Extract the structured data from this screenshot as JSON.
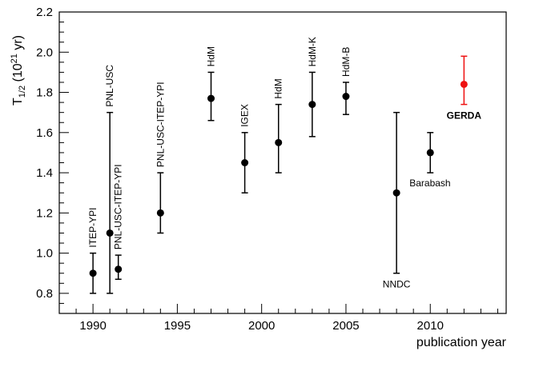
{
  "chart_data": {
    "type": "scatter",
    "title": "",
    "xlabel": "publication year",
    "ylabel_main": "T",
    "ylabel_sub": "1/2",
    "ylabel_open": " (10",
    "ylabel_exp": "21",
    "ylabel_close": " yr)",
    "xlim": [
      1988,
      2014.5
    ],
    "ylim": [
      0.7,
      2.2
    ],
    "x_ticks": [
      1990,
      1995,
      2000,
      2005,
      2010
    ],
    "y_ticks": [
      0.8,
      1.0,
      1.2,
      1.4,
      1.6,
      1.8,
      2.0,
      2.2
    ],
    "y_tick_labels": [
      "0.8",
      "1.0",
      "1.2",
      "1.4",
      "1.6",
      "1.8",
      "2.0",
      "2.2"
    ],
    "grid": false,
    "colors": {
      "default": "#000000",
      "highlight": "#ee1111"
    },
    "points": [
      {
        "label": "ITEP-YPI",
        "x": 1990,
        "y": 0.9,
        "yerr_low": 0.8,
        "yerr_high": 1.0,
        "label_orient": "vertical",
        "highlight": false
      },
      {
        "label": "PNL-USC",
        "x": 1991,
        "y": 1.1,
        "yerr_low": 0.8,
        "yerr_high": 1.7,
        "label_orient": "vertical",
        "highlight": false
      },
      {
        "label": "PNL-USC-ITEP-YPI",
        "x": 1991.5,
        "y": 0.92,
        "yerr_low": 0.87,
        "yerr_high": 0.99,
        "label_orient": "vertical",
        "highlight": false
      },
      {
        "label": "PNL-USC-ITEP-YPI",
        "x": 1994,
        "y": 1.2,
        "yerr_low": 1.1,
        "yerr_high": 1.4,
        "label_orient": "vertical",
        "highlight": false
      },
      {
        "label": "HdM",
        "x": 1997,
        "y": 1.77,
        "yerr_low": 1.66,
        "yerr_high": 1.9,
        "label_orient": "vertical",
        "highlight": false
      },
      {
        "label": "IGEX",
        "x": 1999,
        "y": 1.45,
        "yerr_low": 1.3,
        "yerr_high": 1.6,
        "label_orient": "vertical",
        "highlight": false
      },
      {
        "label": "HdM",
        "x": 2001,
        "y": 1.55,
        "yerr_low": 1.4,
        "yerr_high": 1.74,
        "label_orient": "vertical",
        "highlight": false
      },
      {
        "label": "HdM-K",
        "x": 2003,
        "y": 1.74,
        "yerr_low": 1.58,
        "yerr_high": 1.9,
        "label_orient": "vertical",
        "highlight": false
      },
      {
        "label": "HdM-B",
        "x": 2005,
        "y": 1.78,
        "yerr_low": 1.69,
        "yerr_high": 1.85,
        "label_orient": "vertical",
        "highlight": false
      },
      {
        "label": "NNDC",
        "x": 2008,
        "y": 1.3,
        "yerr_low": 0.9,
        "yerr_high": 1.7,
        "label_orient": "below",
        "highlight": false
      },
      {
        "label": "Barabash",
        "x": 2010,
        "y": 1.5,
        "yerr_low": 1.4,
        "yerr_high": 1.6,
        "label_orient": "below-right",
        "highlight": false
      },
      {
        "label": "GERDA",
        "x": 2012,
        "y": 1.84,
        "yerr_low": 1.74,
        "yerr_high": 1.98,
        "label_orient": "below",
        "highlight": true
      }
    ]
  }
}
